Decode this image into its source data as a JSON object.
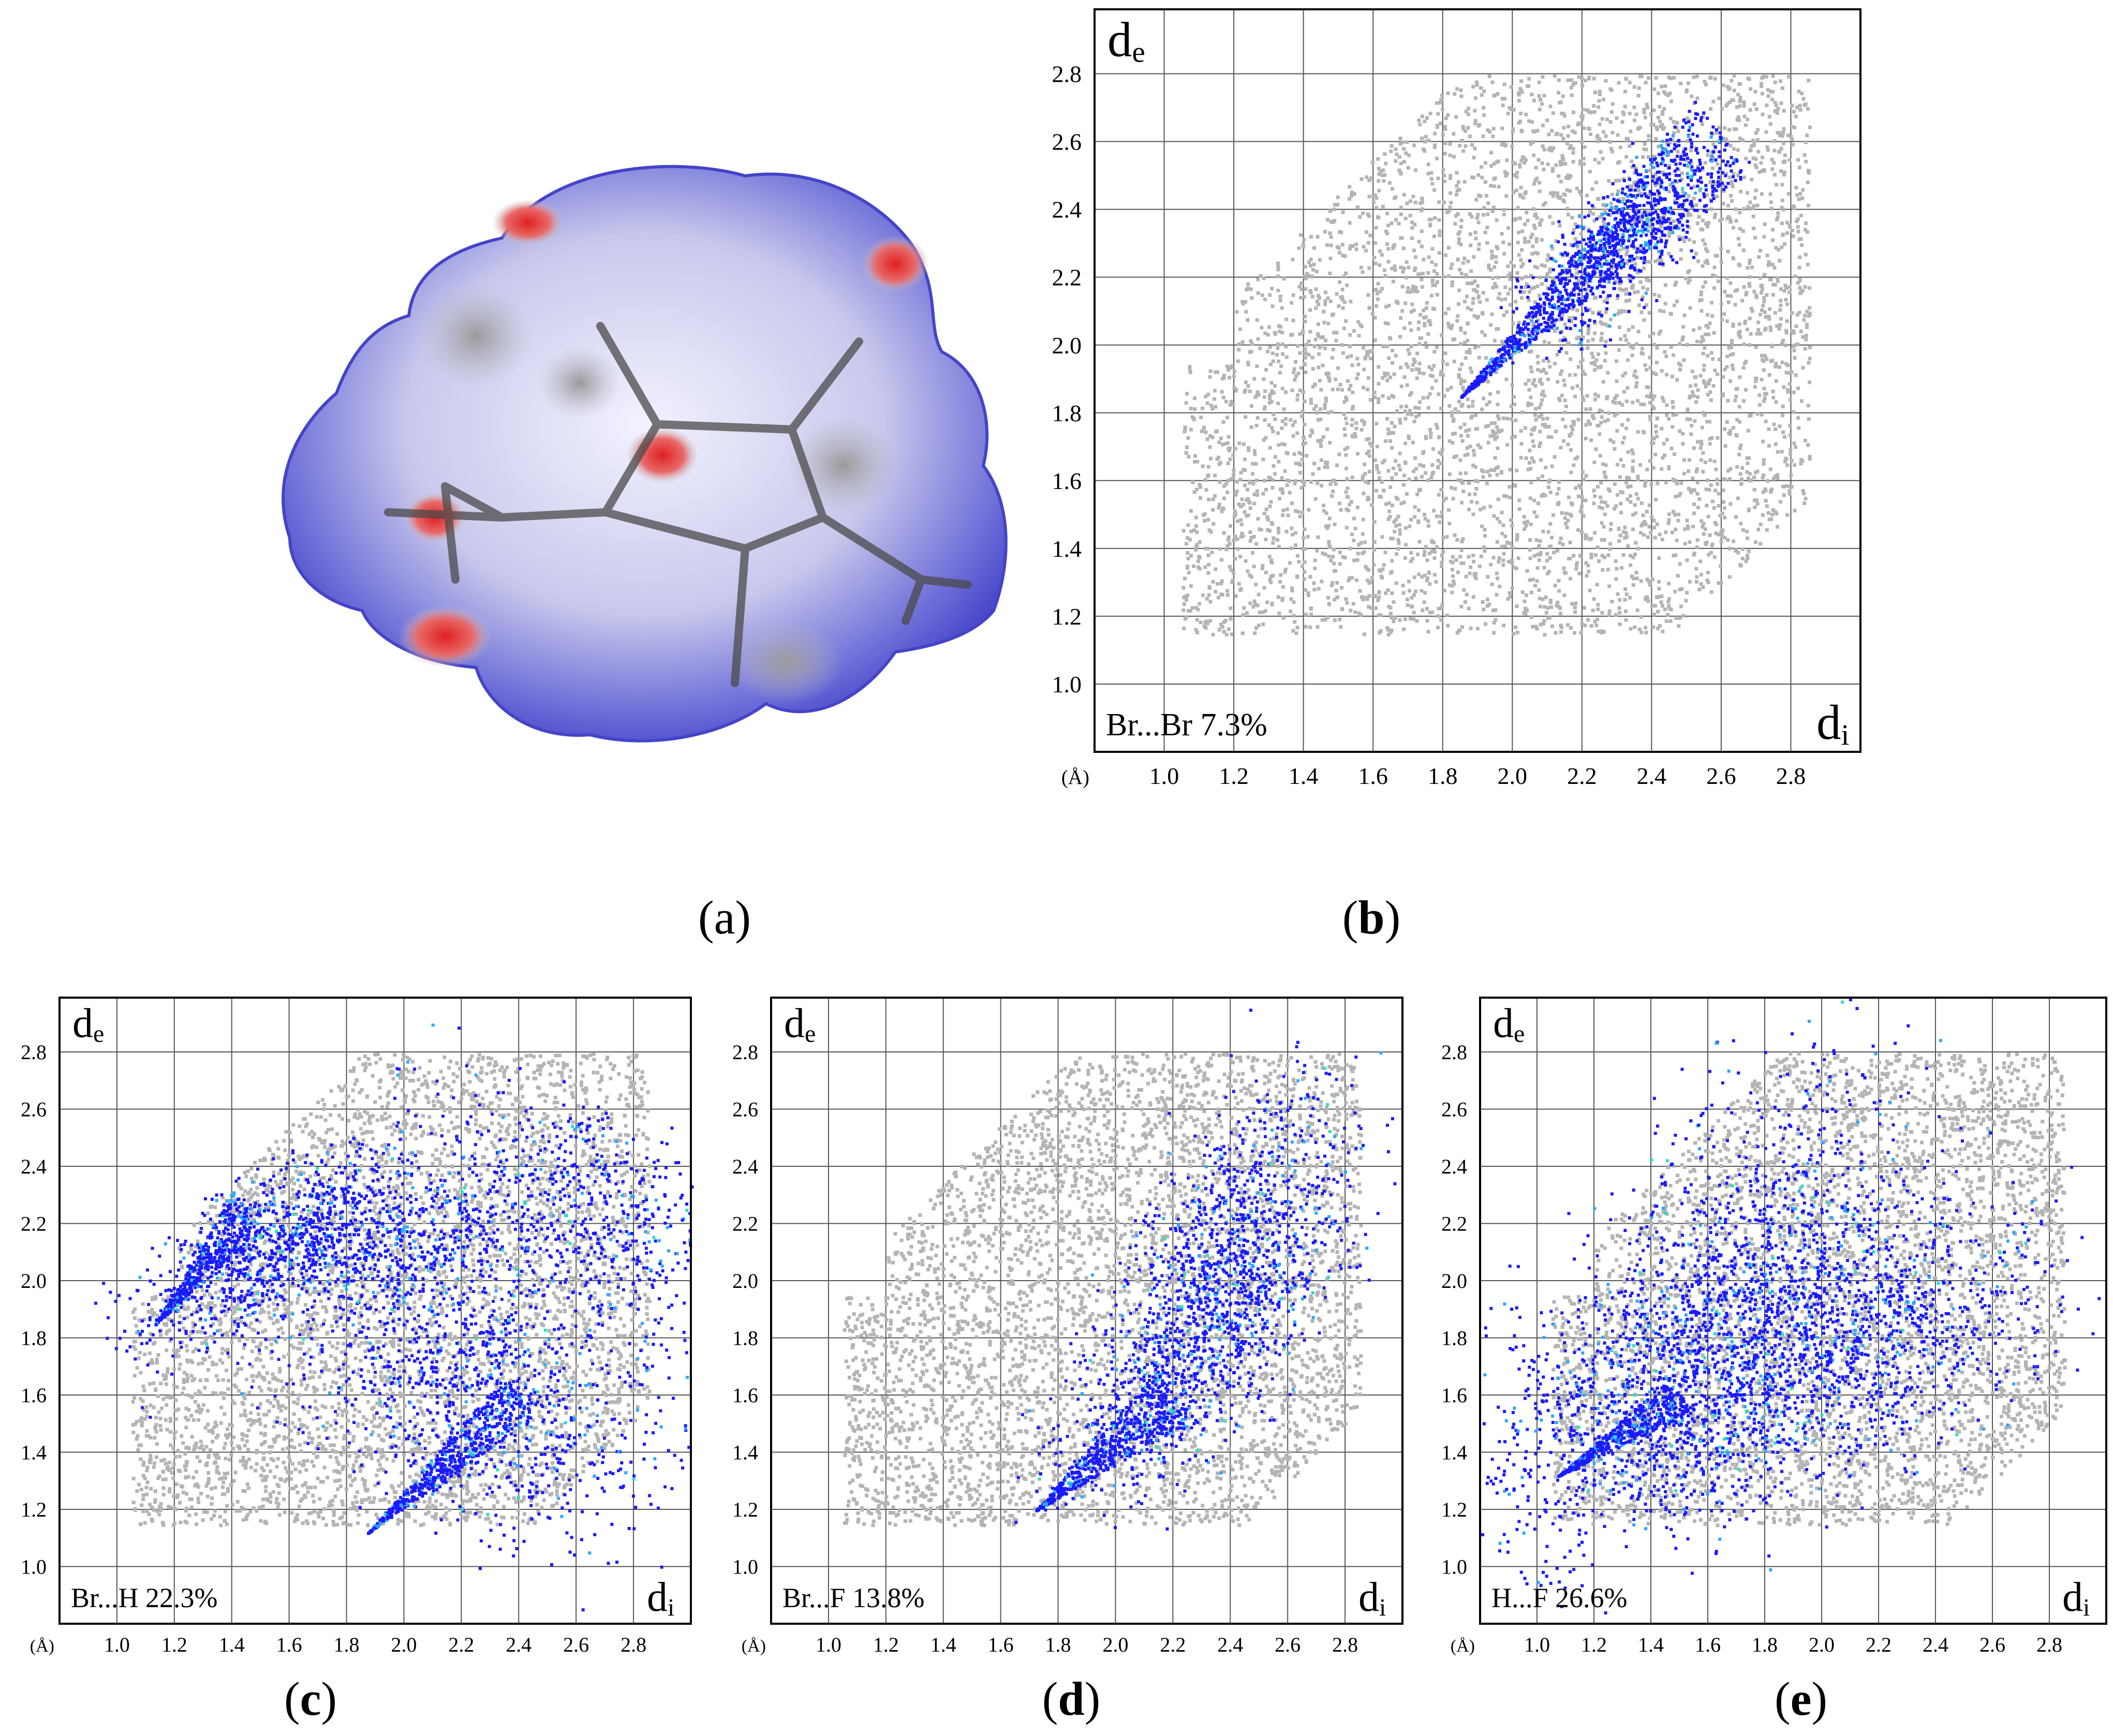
{
  "figure": {
    "panels": [
      {
        "id": "a",
        "caption_letter": "a",
        "bold": false,
        "description_type": "surface"
      },
      {
        "id": "b",
        "caption_letter": "b",
        "bold": true
      },
      {
        "id": "c",
        "caption_letter": "c",
        "bold": true
      },
      {
        "id": "d",
        "caption_letter": "d",
        "bold": true
      },
      {
        "id": "e",
        "caption_letter": "e",
        "bold": true
      }
    ]
  },
  "axis_common": {
    "de_label": "d",
    "de_sub": "e",
    "di_label": "d",
    "di_sub": "i",
    "unit": "(Å)",
    "ticks": [
      "1.0",
      "1.2",
      "1.4",
      "1.6",
      "1.8",
      "2.0",
      "2.2",
      "2.4",
      "2.6",
      "2.8"
    ]
  },
  "chart_data": [
    {
      "panel": "b",
      "type": "scatter",
      "label": "Br...Br 7.3%",
      "xlim": [
        0.8,
        3.0
      ],
      "ylim": [
        0.8,
        2.99
      ],
      "highlight_color": "#1a1aff",
      "background_color": "#b4b4b4",
      "highlight_region": [
        [
          1.84,
          1.84
        ],
        [
          2.0,
          2.1
        ],
        [
          2.2,
          2.35
        ],
        [
          2.45,
          2.55
        ],
        [
          2.65,
          2.65
        ],
        [
          2.55,
          2.45
        ],
        [
          2.35,
          2.2
        ],
        [
          2.2,
          2.1
        ],
        [
          2.0,
          1.95
        ]
      ]
    },
    {
      "panel": "c",
      "type": "scatter",
      "label": "Br...H 22.3%",
      "xlim": [
        0.8,
        3.0
      ],
      "ylim": [
        0.8,
        2.99
      ],
      "highlight_color": "#1a1aff",
      "background_color": "#b4b4b4"
    },
    {
      "panel": "d",
      "type": "scatter",
      "label": "Br...F 13.8%",
      "xlim": [
        0.8,
        3.0
      ],
      "ylim": [
        0.8,
        2.99
      ],
      "highlight_color": "#1a1aff",
      "background_color": "#b4b4b4"
    },
    {
      "panel": "e",
      "type": "scatter",
      "label": "H...F 26.6%",
      "xlim": [
        0.8,
        3.0
      ],
      "ylim": [
        0.8,
        2.99
      ],
      "highlight_color": "#1a1aff",
      "background_color": "#b4b4b4"
    }
  ]
}
